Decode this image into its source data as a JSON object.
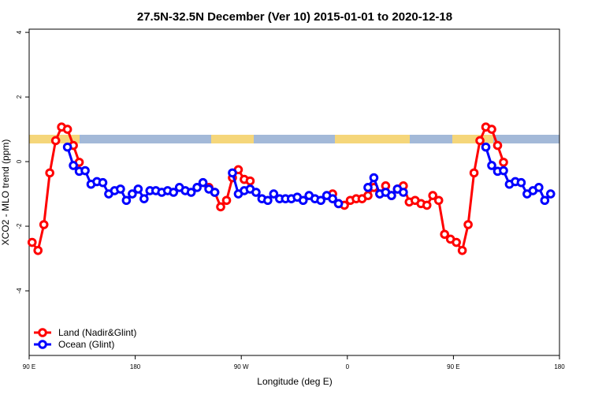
{
  "chart_data": {
    "type": "line",
    "title": "27.5N-32.5N December (Ver 10)   2015-01-01 to 2020-12-18",
    "x_label": "Longitude (deg E)",
    "y_label": "XCO2 - MLO trend (ppm)",
    "x": [
      92.5,
      97.5,
      102.5,
      107.5,
      112.5,
      117.5,
      122.5,
      127.5,
      132.5,
      137.5,
      142.5,
      147.5,
      152.5,
      157.5,
      162.5,
      167.5,
      172.5,
      177.5,
      182.5,
      187.5,
      192.5,
      197.5,
      202.5,
      207.5,
      212.5,
      217.5,
      222.5,
      227.5,
      232.5,
      237.5,
      242.5,
      247.5,
      252.5,
      257.5,
      262.5,
      267.5,
      272.5,
      277.5,
      282.5,
      287.5,
      292.5,
      297.5,
      302.5,
      307.5,
      312.5,
      317.5,
      322.5,
      327.5,
      332.5,
      337.5,
      342.5,
      347.5,
      352.5,
      357.5,
      362.5,
      367.5,
      372.5,
      377.5,
      382.5,
      387.5,
      392.5,
      397.5,
      402.5,
      407.5,
      412.5,
      417.5,
      422.5,
      427.5,
      432.5,
      437.5,
      442.5,
      447.5,
      452.5,
      457.5,
      462.5,
      467.5,
      472.5,
      477.5,
      482.5,
      487.5,
      492.5,
      497.5,
      502.5,
      507.5,
      512.5,
      517.5,
      522.5,
      527.5,
      532.5
    ],
    "series": [
      {
        "name": "Land (Nadir&Glint)",
        "color": "#ff0000",
        "values": [
          -2.5,
          -2.75,
          -1.95,
          -0.35,
          0.65,
          1.07,
          1.0,
          0.5,
          -0.02,
          null,
          null,
          null,
          null,
          null,
          null,
          null,
          null,
          null,
          null,
          null,
          null,
          null,
          null,
          null,
          null,
          null,
          null,
          null,
          null,
          null,
          -0.8,
          -0.95,
          -1.4,
          -1.2,
          -0.5,
          -0.25,
          -0.55,
          -0.6,
          null,
          null,
          null,
          null,
          null,
          null,
          null,
          null,
          null,
          null,
          null,
          null,
          null,
          -1.0,
          -1.3,
          -1.35,
          -1.2,
          -1.15,
          -1.15,
          -1.05,
          -0.8,
          -1.0,
          -0.75,
          -1.05,
          -0.85,
          -0.75,
          -1.25,
          -1.2,
          -1.3,
          -1.35,
          -1.05,
          -1.2,
          -2.25,
          -2.4,
          -2.5,
          -2.75,
          -1.95,
          -0.35,
          0.65,
          1.07,
          1.0,
          0.5,
          -0.02,
          null,
          null,
          null,
          null,
          null,
          null,
          null,
          null
        ]
      },
      {
        "name": "Ocean (Glint)",
        "color": "#0000ff",
        "values": [
          null,
          null,
          null,
          null,
          null,
          null,
          0.45,
          -0.12,
          -0.3,
          -0.28,
          -0.7,
          -0.62,
          -0.65,
          -1.0,
          -0.9,
          -0.85,
          -1.2,
          -1.0,
          -0.85,
          -1.15,
          -0.9,
          -0.9,
          -0.95,
          -0.9,
          -0.95,
          -0.8,
          -0.9,
          -0.95,
          -0.8,
          -0.65,
          -0.85,
          -0.95,
          null,
          null,
          -0.35,
          -1.0,
          -0.9,
          -0.85,
          -0.95,
          -1.15,
          -1.2,
          -1.0,
          -1.15,
          -1.15,
          -1.15,
          -1.1,
          -1.2,
          -1.05,
          -1.15,
          -1.2,
          -1.05,
          -1.15,
          -1.3,
          null,
          null,
          null,
          null,
          -0.8,
          -0.5,
          -1.0,
          -0.95,
          -1.05,
          -0.85,
          -0.95,
          null,
          null,
          null,
          null,
          null,
          null,
          null,
          null,
          null,
          null,
          null,
          null,
          null,
          0.45,
          -0.12,
          -0.3,
          -0.28,
          -0.7,
          -0.62,
          -0.65,
          -1.0,
          -0.9,
          -0.8,
          -1.2,
          -1.0
        ]
      }
    ],
    "xlim": [
      90,
      540
    ],
    "xticks": [
      {
        "value": 90,
        "label": "90 E"
      },
      {
        "value": 180,
        "label": "180"
      },
      {
        "value": 270,
        "label": "90 W"
      },
      {
        "value": 360,
        "label": "0"
      },
      {
        "value": 450,
        "label": "90 E"
      },
      {
        "value": 540,
        "label": "180"
      }
    ],
    "ylim": [
      -6,
      4.1
    ],
    "yticks": [
      4,
      2,
      0,
      -2,
      -4
    ],
    "legend": "bottom-left"
  }
}
